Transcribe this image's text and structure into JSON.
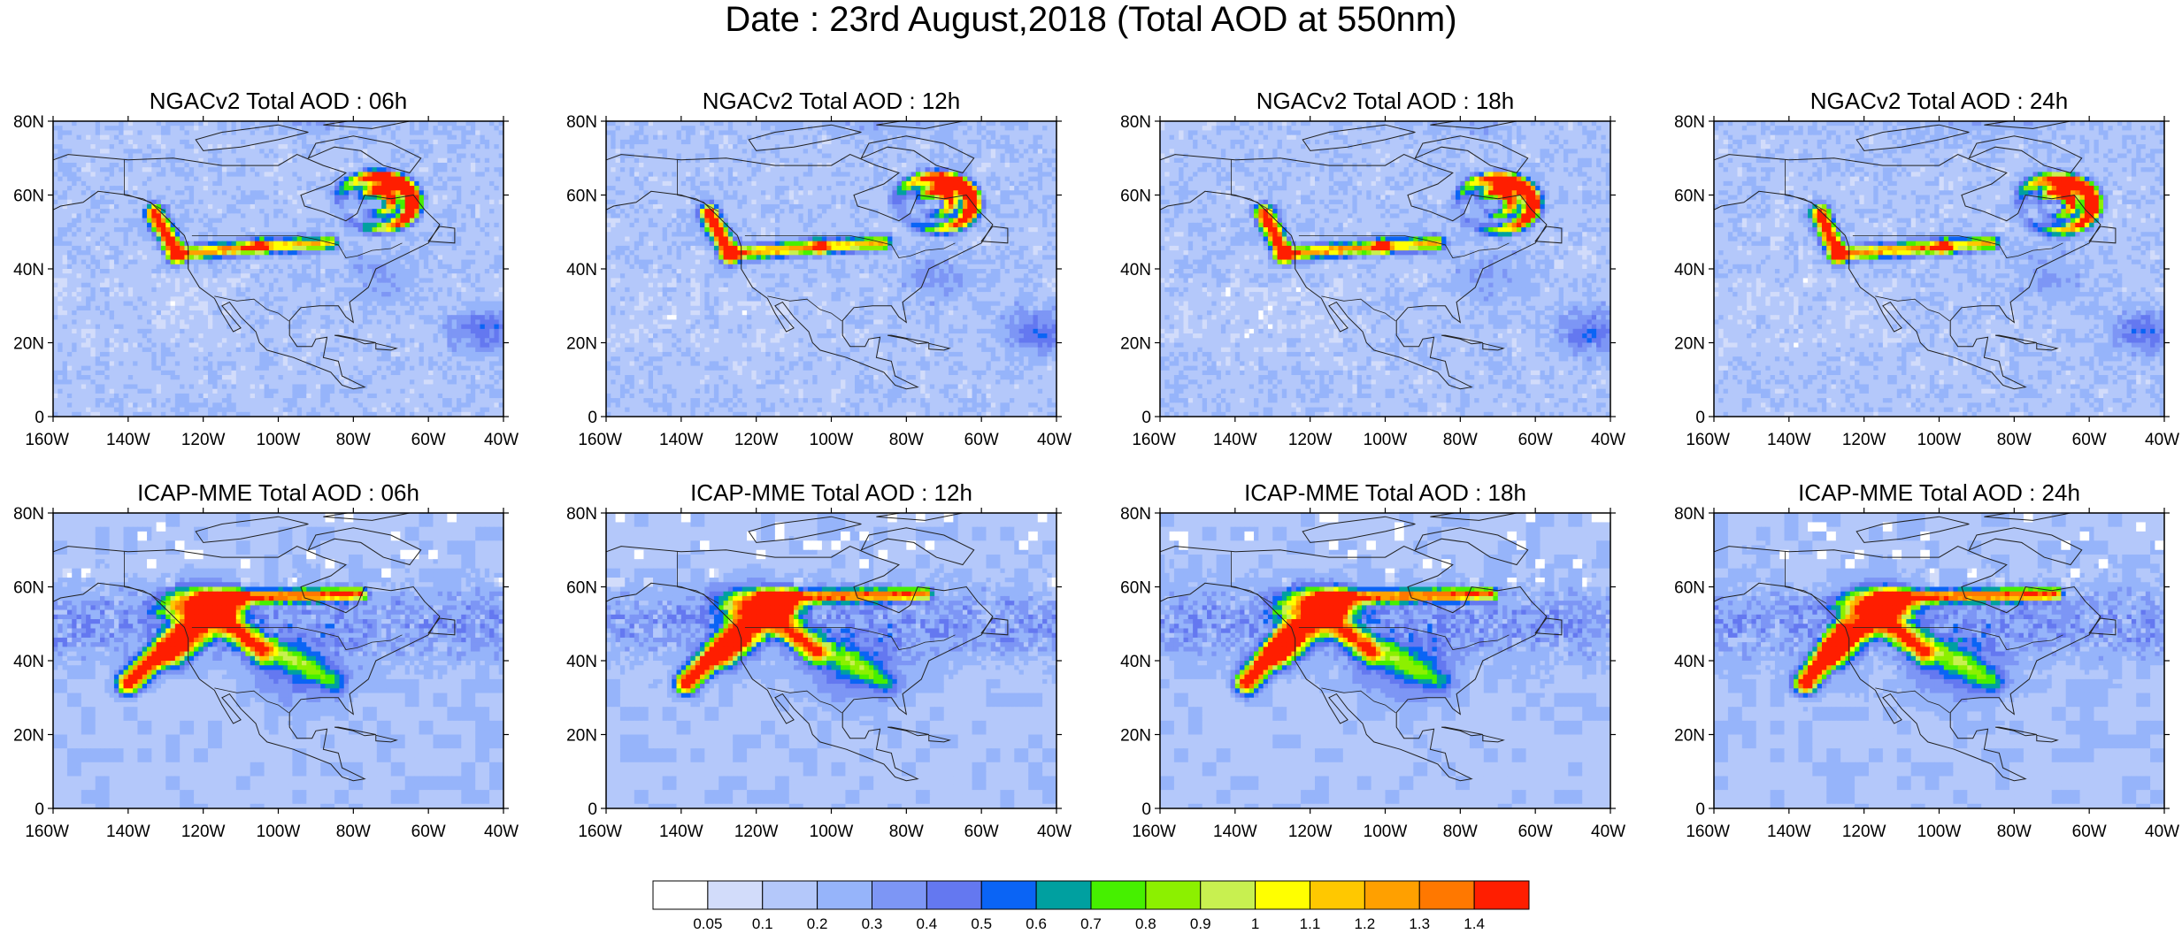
{
  "title": "Date : 23rd August,2018 (Total AOD at 550nm)",
  "panels": [
    {
      "title": "NGACv2 Total AOD : 06h",
      "model": "NGAC",
      "hour": 6
    },
    {
      "title": "NGACv2 Total AOD : 12h",
      "model": "NGAC",
      "hour": 12
    },
    {
      "title": "NGACv2 Total AOD : 18h",
      "model": "NGAC",
      "hour": 18
    },
    {
      "title": "NGACv2 Total AOD : 24h",
      "model": "NGAC",
      "hour": 24
    },
    {
      "title": "ICAP-MME Total AOD : 06h",
      "model": "ICAP",
      "hour": 6
    },
    {
      "title": "ICAP-MME Total AOD : 12h",
      "model": "ICAP",
      "hour": 12
    },
    {
      "title": "ICAP-MME Total AOD : 18h",
      "model": "ICAP",
      "hour": 18
    },
    {
      "title": "ICAP-MME Total AOD : 24h",
      "model": "ICAP",
      "hour": 24
    }
  ],
  "map": {
    "lon_range": [
      -160,
      -40
    ],
    "lat_range": [
      0,
      80
    ],
    "lon_ticks": [
      "160W",
      "140W",
      "120W",
      "100W",
      "80W",
      "60W",
      "40W"
    ],
    "lat_ticks": [
      "0",
      "20N",
      "40N",
      "60N",
      "80N"
    ]
  },
  "colorbar": {
    "labels": [
      "0.05",
      "0.1",
      "0.2",
      "0.3",
      "0.4",
      "0.5",
      "0.6",
      "0.7",
      "0.8",
      "0.9",
      "1",
      "1.1",
      "1.2",
      "1.3",
      "1.4"
    ],
    "colors": [
      "#ffffff",
      "#d2dcfa",
      "#b4c8fa",
      "#96b4fa",
      "#7d96f5",
      "#6478f0",
      "#0a64f5",
      "#00a0a0",
      "#46f000",
      "#8cf000",
      "#c8f050",
      "#ffff00",
      "#ffc800",
      "#ffa000",
      "#ff7800",
      "#ff1e00"
    ]
  }
}
